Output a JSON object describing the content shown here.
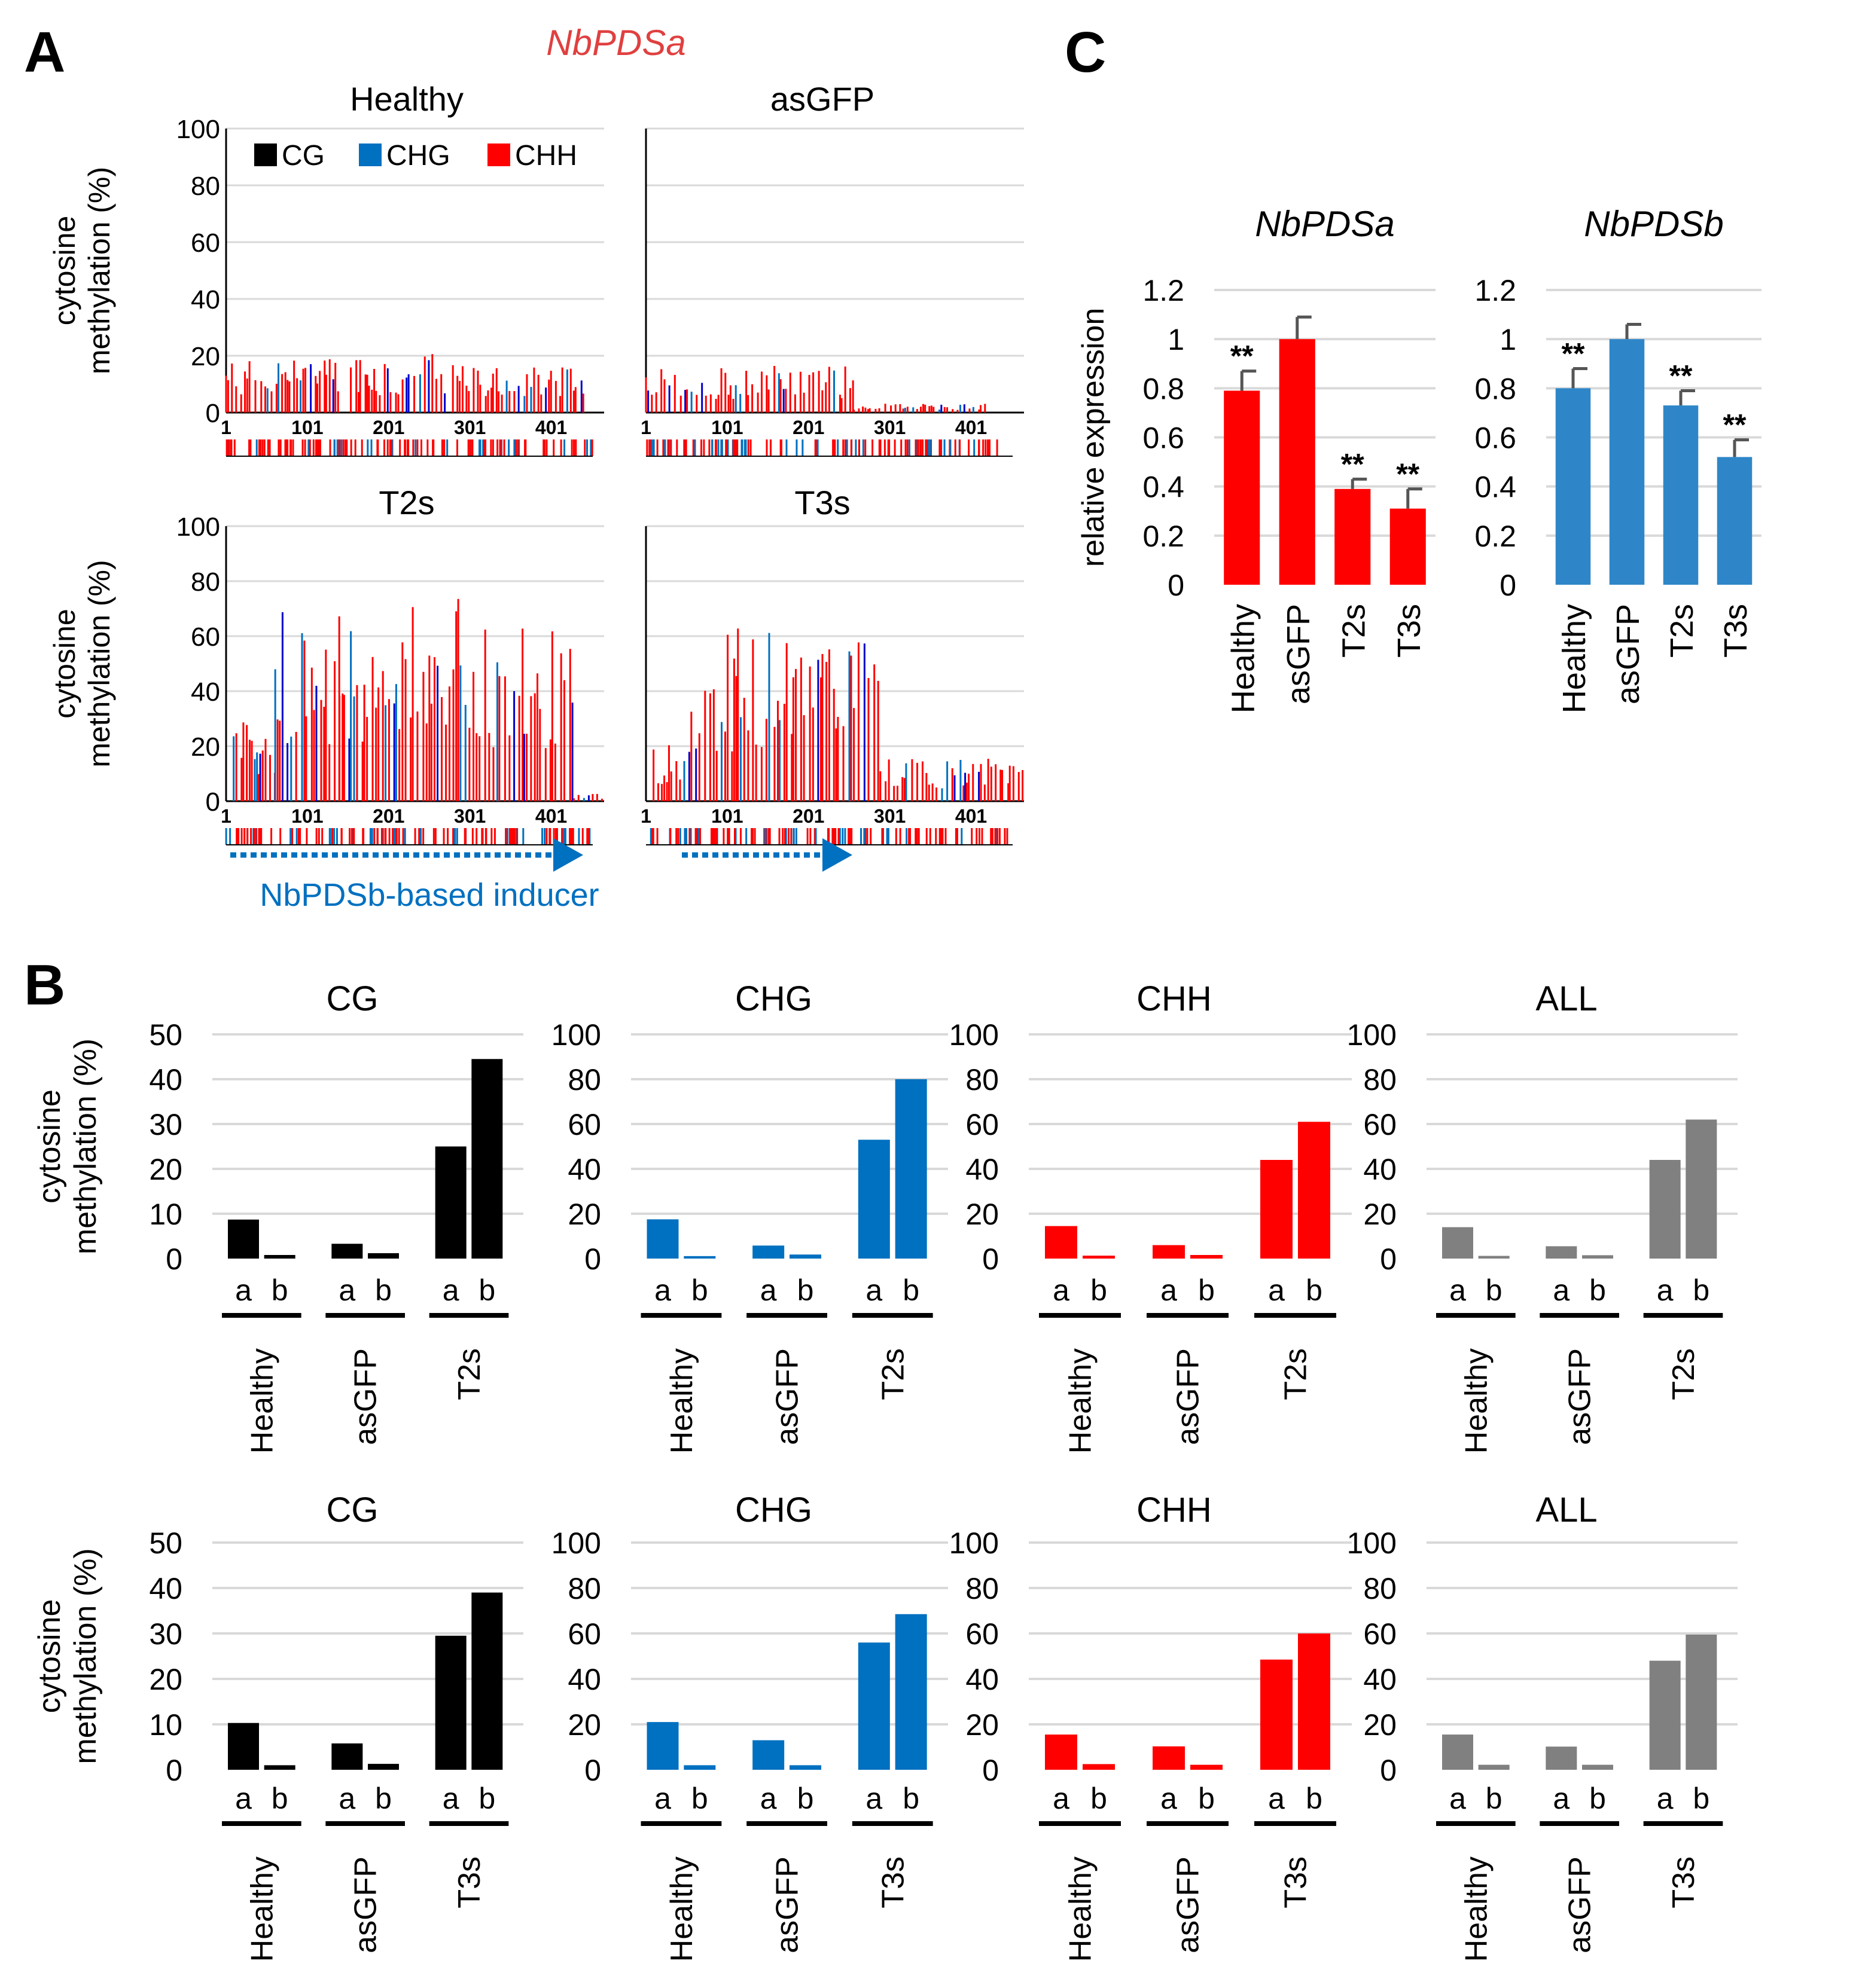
{
  "panel_labels": [
    "A",
    "B",
    "C"
  ],
  "colors": {
    "CG": "#000000",
    "CHG": "#0070C0",
    "CHH": "#FF0000",
    "ALL": "#808080",
    "title_red": "#E04040",
    "grid": "#d9d9d9",
    "arrow": "#0070C0"
  },
  "panelA": {
    "gene_title": "NbPDSa",
    "ylabel_line1": "cytosine",
    "ylabel_line2": "methylation (%)",
    "yticks": [
      "100",
      "80",
      "60",
      "40",
      "20",
      "0"
    ],
    "xticks": [
      "1",
      "101",
      "201",
      "301",
      "401"
    ],
    "legend": [
      "CG",
      "CHG",
      "CHH"
    ],
    "inducer_label": "NbPDSb-based inducer",
    "plots": [
      {
        "title": "Healthy",
        "level": "low"
      },
      {
        "title": "asGFP",
        "level": "low"
      },
      {
        "title": "T2s",
        "level": "high"
      },
      {
        "title": "T3s",
        "level": "high"
      }
    ]
  },
  "chart_data": [
    {
      "type": "bar",
      "title": "CG",
      "row": "T2s",
      "categories": [
        "Healthy",
        "asGFP",
        "T2s"
      ],
      "sub_labels": [
        "a",
        "b"
      ],
      "series": [
        {
          "name": "a",
          "values": [
            8.7,
            3.3,
            25
          ]
        },
        {
          "name": "b",
          "values": [
            0.8,
            1.2,
            44.5
          ]
        }
      ],
      "ylim": [
        0,
        50
      ],
      "yticks": [
        "50",
        "40",
        "30",
        "20",
        "10",
        "0"
      ],
      "ylabel": "cytosine methylation (%)",
      "color": "#000000"
    },
    {
      "type": "bar",
      "title": "CHG",
      "row": "T2s",
      "categories": [
        "Healthy",
        "asGFP",
        "T2s"
      ],
      "sub_labels": [
        "a",
        "b"
      ],
      "series": [
        {
          "name": "a",
          "values": [
            17.5,
            5.8,
            53
          ]
        },
        {
          "name": "b",
          "values": [
            1.1,
            1.8,
            80
          ]
        }
      ],
      "ylim": [
        0,
        100
      ],
      "yticks": [
        "100",
        "80",
        "60",
        "40",
        "20",
        "0"
      ],
      "color": "#0070C0"
    },
    {
      "type": "bar",
      "title": "CHH",
      "row": "T2s",
      "categories": [
        "Healthy",
        "asGFP",
        "T2s"
      ],
      "sub_labels": [
        "a",
        "b"
      ],
      "series": [
        {
          "name": "a",
          "values": [
            14.5,
            6,
            44
          ]
        },
        {
          "name": "b",
          "values": [
            1.3,
            1.6,
            61
          ]
        }
      ],
      "ylim": [
        0,
        100
      ],
      "yticks": [
        "100",
        "80",
        "60",
        "40",
        "20",
        "0"
      ],
      "color": "#FF0000"
    },
    {
      "type": "bar",
      "title": "ALL",
      "row": "T2s",
      "categories": [
        "Healthy",
        "asGFP",
        "T2s"
      ],
      "sub_labels": [
        "a",
        "b"
      ],
      "series": [
        {
          "name": "a",
          "values": [
            14,
            5.5,
            44
          ]
        },
        {
          "name": "b",
          "values": [
            1.2,
            1.5,
            62
          ]
        }
      ],
      "ylim": [
        0,
        100
      ],
      "yticks": [
        "100",
        "80",
        "60",
        "40",
        "20",
        "0"
      ],
      "color": "#808080"
    },
    {
      "type": "bar",
      "title": "CG",
      "row": "T3s",
      "categories": [
        "Healthy",
        "asGFP",
        "T3s"
      ],
      "sub_labels": [
        "a",
        "b"
      ],
      "series": [
        {
          "name": "a",
          "values": [
            10.3,
            5.8,
            29.5
          ]
        },
        {
          "name": "b",
          "values": [
            1,
            1.3,
            39
          ]
        }
      ],
      "ylim": [
        0,
        50
      ],
      "yticks": [
        "50",
        "40",
        "30",
        "20",
        "10",
        "0"
      ],
      "ylabel": "cytosine methylation (%)",
      "color": "#000000"
    },
    {
      "type": "bar",
      "title": "CHG",
      "row": "T3s",
      "categories": [
        "Healthy",
        "asGFP",
        "T3s"
      ],
      "sub_labels": [
        "a",
        "b"
      ],
      "series": [
        {
          "name": "a",
          "values": [
            21,
            13,
            56
          ]
        },
        {
          "name": "b",
          "values": [
            2,
            2,
            68.5
          ]
        }
      ],
      "ylim": [
        0,
        100
      ],
      "yticks": [
        "100",
        "80",
        "60",
        "40",
        "20",
        "0"
      ],
      "color": "#0070C0"
    },
    {
      "type": "bar",
      "title": "CHH",
      "row": "T3s",
      "categories": [
        "Healthy",
        "asGFP",
        "T3s"
      ],
      "sub_labels": [
        "a",
        "b"
      ],
      "series": [
        {
          "name": "a",
          "values": [
            15.5,
            10.3,
            48.5
          ]
        },
        {
          "name": "b",
          "values": [
            2.5,
            2.2,
            60
          ]
        }
      ],
      "ylim": [
        0,
        100
      ],
      "yticks": [
        "100",
        "80",
        "60",
        "40",
        "20",
        "0"
      ],
      "color": "#FF0000"
    },
    {
      "type": "bar",
      "title": "ALL",
      "row": "T3s",
      "categories": [
        "Healthy",
        "asGFP",
        "T3s"
      ],
      "sub_labels": [
        "a",
        "b"
      ],
      "series": [
        {
          "name": "a",
          "values": [
            15.5,
            10.2,
            48
          ]
        },
        {
          "name": "b",
          "values": [
            2.2,
            2.2,
            59.5
          ]
        }
      ],
      "ylim": [
        0,
        100
      ],
      "yticks": [
        "100",
        "80",
        "60",
        "40",
        "20",
        "0"
      ],
      "color": "#808080"
    },
    {
      "type": "bar",
      "title": "NbPDSa",
      "categories": [
        "Healthy",
        "asGFP",
        "T2s",
        "T3s"
      ],
      "values": [
        0.79,
        1.0,
        0.39,
        0.31
      ],
      "errors": [
        0.08,
        0.09,
        0.04,
        0.08
      ],
      "significance": [
        "**",
        "",
        "**",
        "**"
      ],
      "ylim": [
        0,
        1.2
      ],
      "yticks": [
        "1.2",
        "1",
        "0.8",
        "0.6",
        "0.4",
        "0.2",
        "0"
      ],
      "ylabel": "relative expression",
      "color": "#FF0000"
    },
    {
      "type": "bar",
      "title": "NbPDSb",
      "categories": [
        "Healthy",
        "asGFP",
        "T2s",
        "T3s"
      ],
      "values": [
        0.8,
        1.0,
        0.73,
        0.52
      ],
      "errors": [
        0.08,
        0.06,
        0.06,
        0.07
      ],
      "significance": [
        "**",
        "",
        "**",
        "**"
      ],
      "ylim": [
        0,
        1.2
      ],
      "yticks": [
        "1.2",
        "1",
        "0.8",
        "0.6",
        "0.4",
        "0.2",
        "0"
      ],
      "color": "#2E86C8"
    }
  ]
}
